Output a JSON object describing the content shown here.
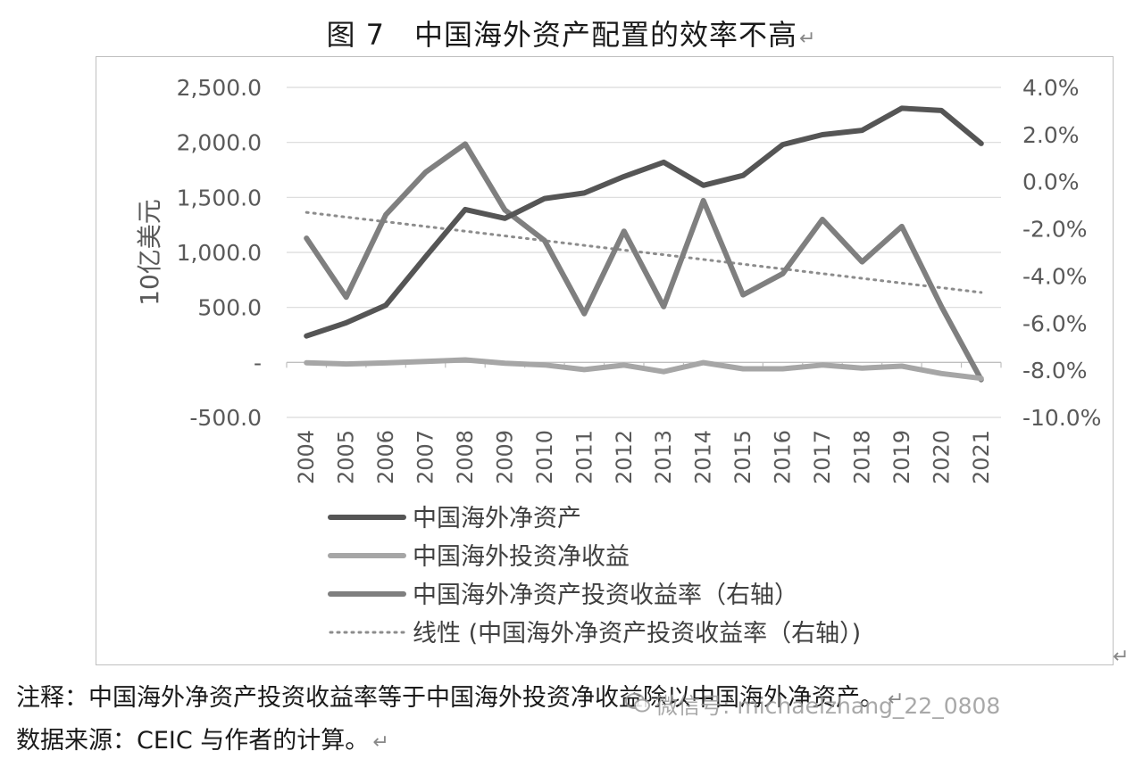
{
  "figure_title": "图 7　中国海外资产配置的效率不高",
  "return_mark": "↵",
  "notes": {
    "line1": "注释：中国海外净资产投资收益率等于中国海外投资净收益除以中国海外净资产。",
    "line2": "数据来源：CEIC 与作者的计算。"
  },
  "watermark": {
    "icon": "wechat-icon",
    "text": "微信号: michaelzhang_22_0808"
  },
  "colors": {
    "net_assets": "#555555",
    "net_income": "#a6a6a6",
    "return_rate": "#7f7f7f",
    "trend": "#8c8c8c",
    "grid": "#d9d9d9"
  },
  "chart_data": {
    "type": "line",
    "title": "",
    "xlabel": "",
    "ylabel": "10亿美元",
    "y2label": "",
    "ylim": [
      -500,
      2500
    ],
    "y2lim": [
      -10,
      4
    ],
    "grid": true,
    "legend_position": "bottom",
    "x": [
      "2004",
      "2005",
      "2006",
      "2007",
      "2008",
      "2009",
      "2010",
      "2011",
      "2012",
      "2013",
      "2014",
      "2015",
      "2016",
      "2017",
      "2018",
      "2019",
      "2020",
      "2021"
    ],
    "y_ticks": [
      {
        "value": 2500,
        "label": "2,500.0"
      },
      {
        "value": 2000,
        "label": "2,000.0"
      },
      {
        "value": 1500,
        "label": "1,500.0"
      },
      {
        "value": 1000,
        "label": "1,000.0"
      },
      {
        "value": 500,
        "label": "500.0"
      },
      {
        "value": 0,
        "label": "-"
      },
      {
        "value": -500,
        "label": "-500.0"
      }
    ],
    "y2_ticks": [
      {
        "value": 4,
        "label": "4.0%"
      },
      {
        "value": 2,
        "label": "2.0%"
      },
      {
        "value": 0,
        "label": "0.0%"
      },
      {
        "value": -2,
        "label": "-2.0%"
      },
      {
        "value": -4,
        "label": "-4.0%"
      },
      {
        "value": -6,
        "label": "-6.0%"
      },
      {
        "value": -8,
        "label": "-8.0%"
      },
      {
        "value": -10,
        "label": "-10.0%"
      }
    ],
    "series": [
      {
        "name": "中国海外净资产",
        "axis": "left",
        "style": "solid",
        "color_key": "net_assets",
        "values": [
          240,
          360,
          520,
          960,
          1390,
          1310,
          1490,
          1540,
          1690,
          1820,
          1610,
          1700,
          1980,
          2070,
          2110,
          2310,
          2290,
          1990
        ]
      },
      {
        "name": "中国海外投资净收益",
        "axis": "left",
        "style": "solid",
        "color_key": "net_income",
        "values": [
          -3,
          -14,
          -5,
          9,
          23,
          -7,
          -23,
          -65,
          -25,
          -84,
          -2,
          -58,
          -58,
          -24,
          -52,
          -34,
          -101,
          -145
        ]
      },
      {
        "name": "中国海外净资产投资收益率（右轴）",
        "axis": "right",
        "style": "solid",
        "color_key": "return_rate",
        "values": [
          -2.4,
          -4.9,
          -1.4,
          0.4,
          1.6,
          -1.2,
          -2.5,
          -5.6,
          -2.1,
          -5.3,
          -0.8,
          -4.8,
          -3.9,
          -1.6,
          -3.4,
          -1.9,
          -5.3,
          -8.4
        ]
      },
      {
        "name": "线性 (中国海外净资产投资收益率（右轴）)",
        "axis": "right",
        "style": "dotted",
        "color_key": "trend",
        "values": [
          -1.3,
          -1.5,
          -1.7,
          -1.9,
          -2.1,
          -2.3,
          -2.5,
          -2.7,
          -2.9,
          -3.1,
          -3.3,
          -3.5,
          -3.7,
          -3.9,
          -4.1,
          -4.3,
          -4.5,
          -4.7
        ]
      }
    ]
  }
}
